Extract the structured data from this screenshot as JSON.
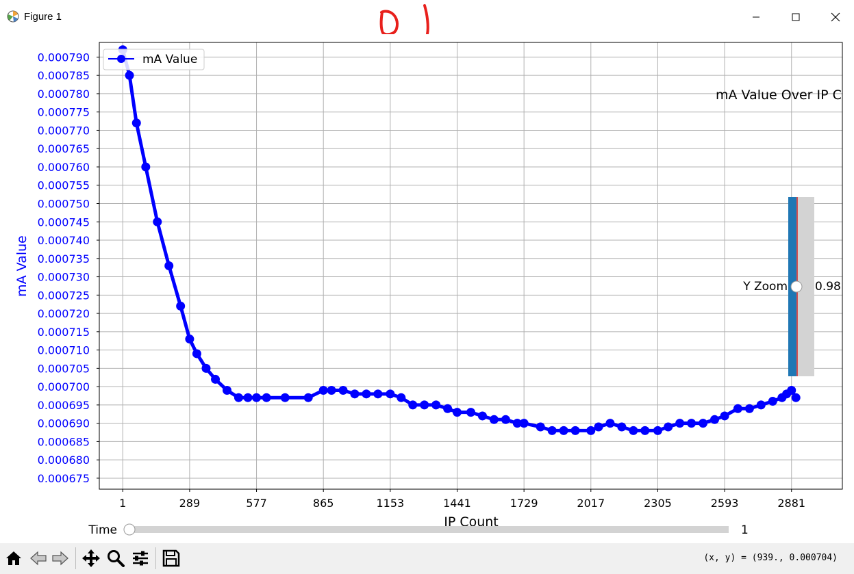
{
  "window": {
    "title": "Figure 1"
  },
  "annotation": {
    "scribble_color": "#e8201c"
  },
  "chart_data": {
    "type": "line",
    "title": "mA Value Over IP C",
    "xlabel": "IP Count",
    "ylabel": "mA Value",
    "xlim": [
      -100,
      3100
    ],
    "ylim": [
      0.000672,
      0.000794
    ],
    "xticks": [
      "1",
      "289",
      "577",
      "865",
      "1153",
      "1441",
      "1729",
      "2017",
      "2305",
      "2593",
      "2881"
    ],
    "yticks": [
      "0.000675",
      "0.000680",
      "0.000685",
      "0.000690",
      "0.000695",
      "0.000700",
      "0.000705",
      "0.000710",
      "0.000715",
      "0.000720",
      "0.000725",
      "0.000730",
      "0.000735",
      "0.000740",
      "0.000745",
      "0.000750",
      "0.000755",
      "0.000760",
      "0.000765",
      "0.000770",
      "0.000775",
      "0.000780",
      "0.000785",
      "0.000790"
    ],
    "grid": true,
    "legend": "upper-left",
    "series": [
      {
        "name": "mA Value",
        "color": "#0000ff",
        "marker": "circle",
        "x": [
          1,
          30,
          60,
          100,
          150,
          200,
          250,
          289,
          320,
          360,
          400,
          450,
          500,
          540,
          577,
          620,
          700,
          800,
          865,
          900,
          950,
          1000,
          1050,
          1100,
          1153,
          1200,
          1250,
          1300,
          1350,
          1400,
          1441,
          1500,
          1550,
          1600,
          1650,
          1700,
          1729,
          1800,
          1850,
          1900,
          1950,
          2017,
          2050,
          2100,
          2150,
          2200,
          2250,
          2305,
          2350,
          2400,
          2450,
          2500,
          2550,
          2593,
          2650,
          2700,
          2750,
          2800,
          2840,
          2860,
          2881,
          2900
        ],
        "y": [
          0.000792,
          0.000785,
          0.000772,
          0.00076,
          0.000745,
          0.000733,
          0.000722,
          0.000713,
          0.000709,
          0.000705,
          0.000702,
          0.000699,
          0.000697,
          0.000697,
          0.000697,
          0.000697,
          0.000697,
          0.000697,
          0.000699,
          0.000699,
          0.000699,
          0.000698,
          0.000698,
          0.000698,
          0.000698,
          0.000697,
          0.000695,
          0.000695,
          0.000695,
          0.000694,
          0.000693,
          0.000693,
          0.000692,
          0.000691,
          0.000691,
          0.00069,
          0.00069,
          0.000689,
          0.000688,
          0.000688,
          0.000688,
          0.000688,
          0.000689,
          0.00069,
          0.000689,
          0.000688,
          0.000688,
          0.000688,
          0.000689,
          0.00069,
          0.00069,
          0.00069,
          0.000691,
          0.000692,
          0.000694,
          0.000694,
          0.000695,
          0.000696,
          0.000697,
          0.000698,
          0.000699,
          0.000697
        ]
      }
    ]
  },
  "slider_y": {
    "label": "Y Zoom",
    "value_text": "0.98",
    "value": 0.98,
    "min": 0,
    "max": 1
  },
  "slider_time": {
    "label": "Time",
    "value_text": "1"
  },
  "toolbar": {
    "coords": "(x, y) = (939., 0.000704)",
    "icons": [
      "home-icon",
      "back-icon",
      "forward-icon",
      "pan-icon",
      "zoom-icon",
      "configure-icon",
      "save-icon"
    ]
  }
}
